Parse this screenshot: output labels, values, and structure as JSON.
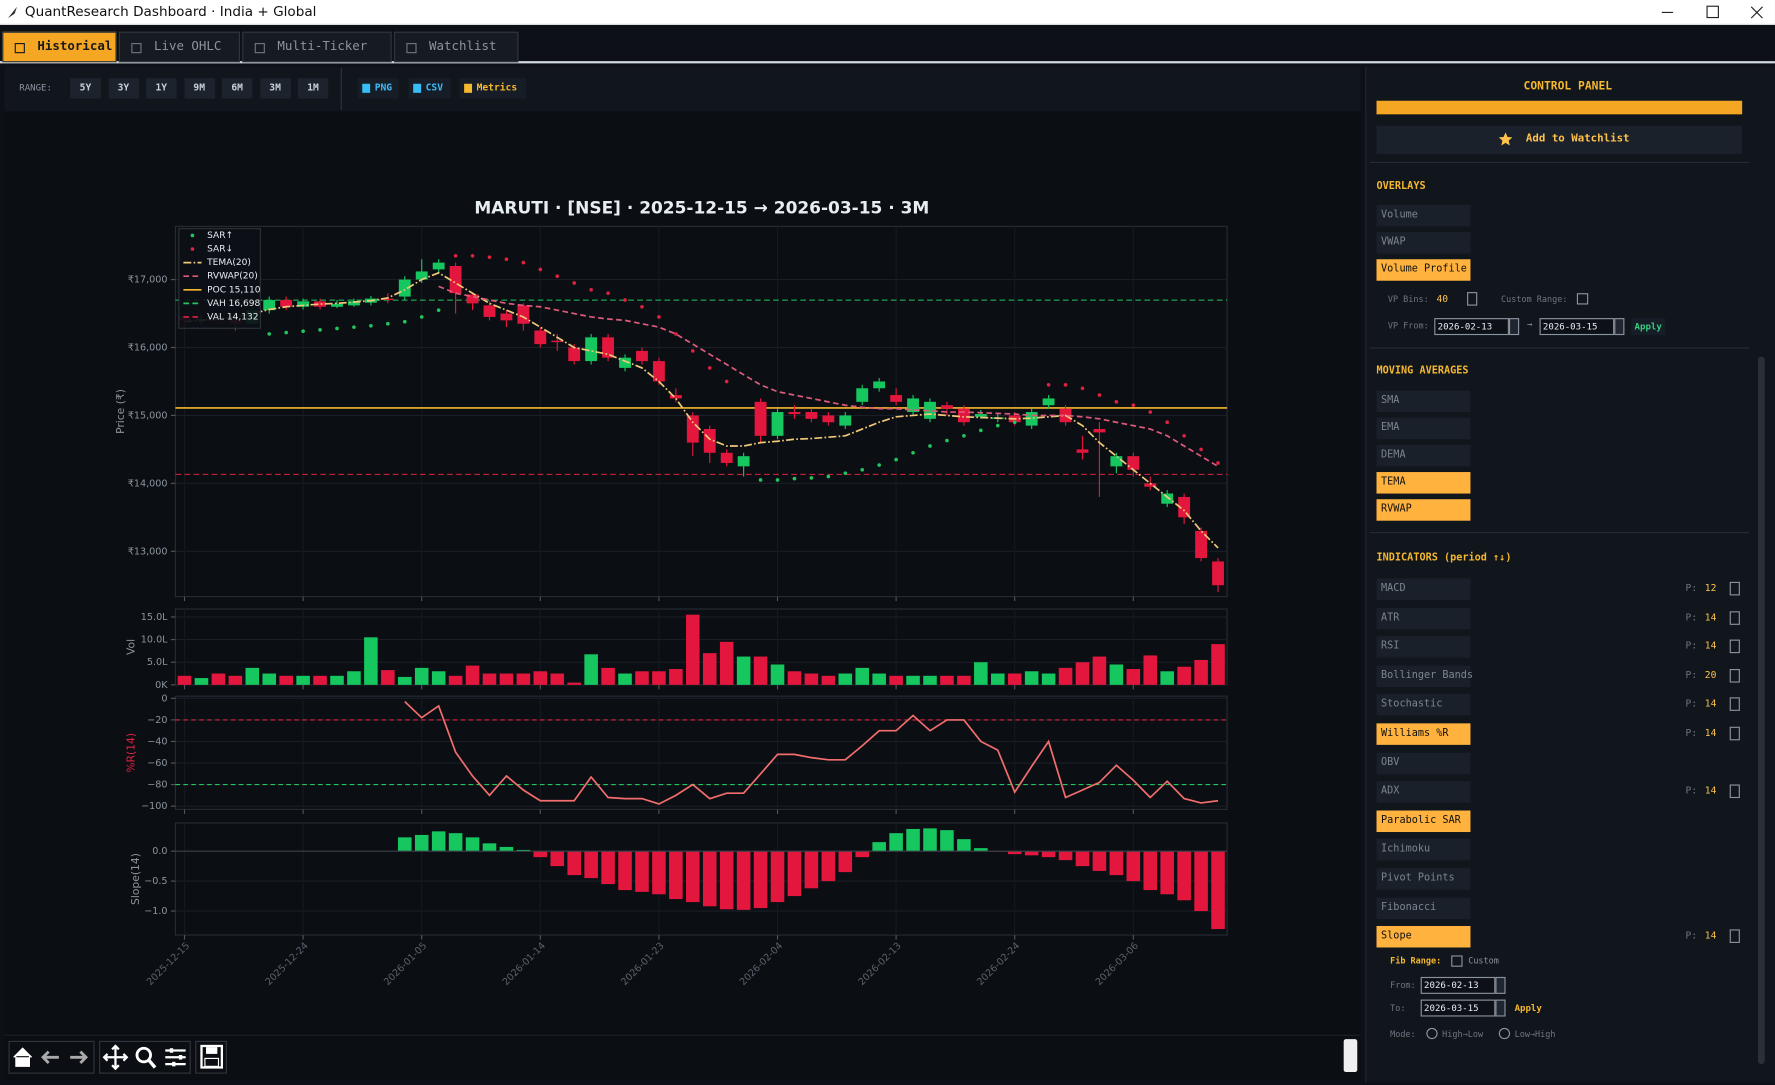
{
  "window": {
    "title": "QuantResearch Dashboard · India + Global"
  },
  "tabs": {
    "items": [
      "Historical",
      "Live OHLC",
      "Multi-Ticker",
      "Watchlist"
    ],
    "active": 0
  },
  "toolbar": {
    "range_label": "RANGE:",
    "ranges": [
      "5Y",
      "3Y",
      "1Y",
      "9M",
      "6M",
      "3M",
      "1M"
    ],
    "exports": [
      "PNG",
      "CSV",
      "Metrics"
    ]
  },
  "chart_data": [
    {
      "type": "candlestick",
      "title": "MARUTI  ·  [NSE]  ·  2025-12-15 → 2026-03-15  ·  3M",
      "y_label": "Price (₹)",
      "ylim": [
        12333,
        17783
      ],
      "yticks": [
        {
          "value": 13000,
          "label": "₹13,000"
        },
        {
          "value": 14000,
          "label": "₹14,000"
        },
        {
          "value": 15000,
          "label": "₹15,000"
        },
        {
          "value": 16000,
          "label": "₹16,000"
        },
        {
          "value": 17000,
          "label": "₹17,000"
        }
      ],
      "grid": true,
      "up_color": "#16c65f",
      "down_color": "#e3173e",
      "open": [
        16450,
        16400,
        16420,
        16400,
        16350,
        16550,
        16700,
        16600,
        16680,
        16600,
        16620,
        16660,
        16720,
        16750,
        17000,
        17150,
        17200,
        16780,
        16620,
        16500,
        16620,
        16250,
        16100,
        16000,
        15800,
        16150,
        15700,
        15950,
        15800,
        15300,
        15000,
        14800,
        14450,
        14250,
        15200,
        14700,
        15050,
        15050,
        15000,
        14850,
        15200,
        15400,
        15300,
        15050,
        14950,
        15150,
        15100,
        14980,
        14950,
        15000,
        14850,
        15150,
        15100,
        14500,
        14800,
        14250,
        14400,
        14000,
        13700,
        13800,
        13300,
        12850
      ],
      "high": [
        16500,
        16480,
        16480,
        16450,
        16600,
        16750,
        16750,
        16720,
        16720,
        16700,
        16720,
        16760,
        16800,
        17050,
        17300,
        17300,
        17250,
        16800,
        16680,
        16550,
        16650,
        16300,
        16200,
        16050,
        16200,
        16200,
        15900,
        16000,
        15850,
        15400,
        15050,
        14850,
        14500,
        14450,
        15250,
        15100,
        15150,
        15100,
        15050,
        15050,
        15450,
        15550,
        15400,
        15300,
        15250,
        15200,
        15150,
        15080,
        15020,
        15050,
        15100,
        15300,
        15150,
        14700,
        14900,
        14450,
        14450,
        14100,
        13900,
        13850,
        13350,
        12900
      ],
      "low": [
        16300,
        16330,
        16350,
        16250,
        16330,
        16500,
        16550,
        16560,
        16560,
        16580,
        16600,
        16620,
        16650,
        16700,
        16950,
        17100,
        16500,
        16550,
        16400,
        16300,
        16250,
        16000,
        15950,
        15750,
        15750,
        15800,
        15650,
        15750,
        15450,
        15200,
        14400,
        14300,
        14250,
        14100,
        14600,
        14650,
        14950,
        14900,
        14850,
        14800,
        15150,
        15350,
        15150,
        15000,
        14900,
        15000,
        14850,
        14950,
        14900,
        14850,
        14800,
        15100,
        14850,
        14350,
        13800,
        14150,
        14100,
        13900,
        13650,
        13400,
        12850,
        12400
      ],
      "close": [
        16400,
        16420,
        16400,
        16350,
        16550,
        16700,
        16600,
        16680,
        16600,
        16640,
        16680,
        16720,
        16700,
        17000,
        17120,
        17250,
        16800,
        16650,
        16450,
        16400,
        16350,
        16050,
        16080,
        15800,
        16150,
        15850,
        15850,
        15800,
        15500,
        15250,
        14600,
        14450,
        14300,
        14400,
        14700,
        15050,
        15020,
        14950,
        14900,
        15000,
        15400,
        15500,
        15200,
        15250,
        15200,
        15100,
        14900,
        15020,
        14970,
        14900,
        15050,
        15250,
        14900,
        14450,
        14750,
        14400,
        14200,
        13950,
        13850,
        13500,
        12900,
        12500
      ],
      "overlays": [
        {
          "name": "SAR↑",
          "type": "scatter",
          "color": "#22c55e",
          "values": [
            null,
            null,
            null,
            null,
            null,
            16200,
            16220,
            16240,
            16260,
            16280,
            16300,
            16320,
            16350,
            16380,
            16450,
            16550,
            null,
            null,
            null,
            null,
            null,
            null,
            null,
            null,
            null,
            null,
            null,
            null,
            null,
            null,
            null,
            null,
            null,
            null,
            14050,
            14050,
            14070,
            14080,
            14100,
            14150,
            14200,
            14270,
            14350,
            14450,
            14550,
            14630,
            14700,
            14780,
            14850,
            14900,
            14950,
            null,
            null,
            null,
            null,
            null,
            null,
            null,
            null,
            null,
            null,
            null
          ]
        },
        {
          "name": "SAR↓",
          "type": "scatter",
          "color": "#e0213f",
          "values": [
            null,
            null,
            null,
            null,
            null,
            null,
            null,
            null,
            null,
            null,
            null,
            null,
            null,
            null,
            null,
            null,
            17350,
            17350,
            17330,
            17300,
            17250,
            17150,
            17050,
            16950,
            16850,
            16800,
            16700,
            16600,
            16450,
            16200,
            15950,
            15700,
            15500,
            null,
            null,
            null,
            null,
            null,
            null,
            null,
            null,
            null,
            null,
            null,
            null,
            null,
            null,
            null,
            null,
            null,
            null,
            15450,
            15450,
            15400,
            15300,
            15200,
            15150,
            15050,
            14900,
            14700,
            14500,
            14300
          ]
        },
        {
          "name": "TEMA(20)",
          "type": "line",
          "style": "dashdot",
          "color": "#f0c878",
          "values": [
            16380,
            16400,
            16420,
            16450,
            16500,
            16560,
            16600,
            16620,
            16640,
            16650,
            16670,
            16690,
            16730,
            16850,
            17000,
            17100,
            16950,
            16800,
            16650,
            16550,
            16450,
            16300,
            16150,
            16000,
            15950,
            15900,
            15800,
            15700,
            15500,
            15250,
            14900,
            14650,
            14550,
            14550,
            14600,
            14620,
            14650,
            14660,
            14680,
            14700,
            14800,
            14900,
            14980,
            15000,
            15020,
            15000,
            14980,
            14970,
            14960,
            14950,
            14960,
            14980,
            15000,
            14850,
            14600,
            14400,
            14200,
            14000,
            13800,
            13600,
            13300,
            13050
          ]
        },
        {
          "name": "RVWAP(20)",
          "type": "line",
          "style": "dashed",
          "color": "#e05a7a",
          "values": [
            null,
            null,
            null,
            null,
            null,
            null,
            null,
            null,
            null,
            null,
            null,
            null,
            null,
            null,
            null,
            16900,
            16800,
            16750,
            16700,
            16650,
            16620,
            16600,
            16550,
            16500,
            16450,
            16420,
            16400,
            16350,
            16300,
            16200,
            16050,
            15900,
            15750,
            15600,
            15450,
            15350,
            15300,
            15250,
            15200,
            15150,
            15120,
            15100,
            15100,
            15080,
            15070,
            15050,
            15050,
            15040,
            15030,
            15020,
            15000,
            15000,
            15000,
            14980,
            14950,
            14900,
            14850,
            14800,
            14700,
            14550,
            14400,
            14250
          ]
        }
      ],
      "reference_lines": [
        {
          "name": "POC 15,110",
          "value": 15110,
          "color": "#f5b82e",
          "style": "solid"
        },
        {
          "name": "VAH 16,698",
          "value": 16698,
          "color": "#22c55e",
          "style": "dashed"
        },
        {
          "name": "VAL 14,132",
          "value": 14132,
          "color": "#e0213f",
          "style": "dashed"
        }
      ]
    },
    {
      "type": "bar",
      "y_label": "Vol",
      "ylim": [
        0,
        1675000
      ],
      "grid": true,
      "up_color": "#16c65f",
      "down_color": "#e3173e",
      "yticks": [
        {
          "value": 0,
          "label": "0K"
        },
        {
          "value": 500000,
          "label": "5.0L"
        },
        {
          "value": 1000000,
          "label": "10.0L"
        },
        {
          "value": 1500000,
          "label": "15.0L"
        }
      ],
      "values": [
        200000,
        150000,
        250000,
        200000,
        375000,
        250000,
        200000,
        200000,
        200000,
        200000,
        300000,
        1050000,
        325000,
        175000,
        375000,
        300000,
        200000,
        425000,
        250000,
        250000,
        250000,
        300000,
        250000,
        50000,
        675000,
        375000,
        250000,
        300000,
        300000,
        350000,
        1550000,
        700000,
        950000,
        625000,
        625000,
        450000,
        300000,
        250000,
        200000,
        250000,
        375000,
        250000,
        200000,
        200000,
        200000,
        200000,
        200000,
        500000,
        250000,
        250000,
        300000,
        250000,
        375000,
        500000,
        625000,
        450000,
        350000,
        650000,
        300000,
        400000,
        550000,
        900000
      ]
    },
    {
      "type": "line",
      "y_label": "%R(14)",
      "label_color": "#e0213f",
      "ylim": [
        -103,
        2
      ],
      "grid": true,
      "color": "#f26d6d",
      "yticks": [
        {
          "value": -100,
          "label": "−100"
        },
        {
          "value": -80,
          "label": "−80"
        },
        {
          "value": -60,
          "label": "−60"
        },
        {
          "value": -40,
          "label": "−40"
        },
        {
          "value": -20,
          "label": "−20"
        },
        0
      ],
      "reference_lines": [
        {
          "value": -20,
          "color": "#e0213f"
        },
        {
          "value": -80,
          "color": "#22c55e"
        }
      ],
      "values": [
        null,
        null,
        null,
        null,
        null,
        null,
        null,
        null,
        null,
        null,
        null,
        null,
        null,
        -3,
        -18,
        -7,
        -50,
        -72,
        -90,
        -72,
        -85,
        -95,
        -95,
        -95,
        -73,
        -92,
        -93,
        -93,
        -98,
        -90,
        -80,
        -93,
        -88,
        -88,
        -70,
        -52,
        -52,
        -55,
        -57,
        -57,
        -44,
        -30,
        -30,
        -16,
        -30,
        -20,
        -20,
        -40,
        -48,
        -87,
        -63,
        -40,
        -92,
        -85,
        -78,
        -62,
        -76,
        -92,
        -77,
        -93,
        -97,
        -95
      ]
    },
    {
      "type": "bar",
      "y_label": "Slope(14)",
      "ylim": [
        -1.4,
        0.47
      ],
      "grid": true,
      "positive_color": "#16c65f",
      "negative_color": "#e3173e",
      "yticks": [
        {
          "value": -1,
          "label": "−1.0"
        },
        {
          "value": -0.5,
          "label": "−0.5"
        },
        {
          "value": 0,
          "label": "0.0"
        }
      ],
      "categories": [
        "2025-12-15",
        null,
        null,
        null,
        null,
        null,
        null,
        "2025-12-24",
        null,
        null,
        null,
        null,
        null,
        null,
        "2026-01-05",
        null,
        null,
        null,
        null,
        null,
        null,
        "2026-01-14",
        null,
        null,
        null,
        null,
        null,
        null,
        "2026-01-23",
        null,
        null,
        null,
        null,
        null,
        null,
        "2026-02-04",
        null,
        null,
        null,
        null,
        null,
        null,
        "2026-02-13",
        null,
        null,
        null,
        null,
        null,
        null,
        "2026-02-24",
        null,
        null,
        null,
        null,
        null,
        null,
        "2026-03-06",
        null,
        null,
        null,
        null,
        null
      ],
      "values": [
        null,
        null,
        null,
        null,
        null,
        null,
        null,
        null,
        null,
        null,
        null,
        null,
        null,
        0.23,
        0.27,
        0.33,
        0.3,
        0.23,
        0.13,
        0.07,
        0.02,
        -0.1,
        -0.25,
        -0.4,
        -0.45,
        -0.55,
        -0.65,
        -0.68,
        -0.72,
        -0.8,
        -0.85,
        -0.92,
        -0.97,
        -0.98,
        -0.95,
        -0.85,
        -0.75,
        -0.62,
        -0.5,
        -0.35,
        -0.1,
        0.15,
        0.3,
        0.37,
        0.38,
        0.35,
        0.2,
        0.05,
        -0.01,
        -0.05,
        -0.07,
        -0.1,
        -0.15,
        -0.25,
        -0.33,
        -0.4,
        -0.5,
        -0.65,
        -0.72,
        -0.82,
        -1.0,
        -1.3
      ]
    }
  ],
  "control_panel": {
    "title": "CONTROL PANEL",
    "watchlist_button": "Add to Watchlist",
    "overlays": {
      "heading": "OVERLAYS",
      "items": [
        {
          "label": "Volume",
          "active": false
        },
        {
          "label": "VWAP",
          "active": false
        },
        {
          "label": "Volume Profile",
          "active": true
        }
      ]
    },
    "volume_profile": {
      "bins_label": "VP Bins:",
      "bins": 40,
      "custom_range_label": "Custom Range:",
      "custom_range": false,
      "from_label": "VP From:",
      "from": "2026-02-13",
      "arrow": "→",
      "to": "2026-03-15",
      "apply": "Apply"
    },
    "moving_averages": {
      "heading": "MOVING AVERAGES",
      "items": [
        {
          "label": "SMA",
          "active": false
        },
        {
          "label": "EMA",
          "active": false
        },
        {
          "label": "DEMA",
          "active": false
        },
        {
          "label": "TEMA",
          "active": true
        },
        {
          "label": "RVWAP",
          "active": true
        }
      ]
    },
    "indicators": {
      "heading": "INDICATORS   (period ↑↓)",
      "period_prefix": "P:",
      "items": [
        {
          "label": "MACD",
          "active": false,
          "period": 12
        },
        {
          "label": "ATR",
          "active": false,
          "period": 14
        },
        {
          "label": "RSI",
          "active": false,
          "period": 14
        },
        {
          "label": "Bollinger Bands",
          "active": false,
          "period": 20
        },
        {
          "label": "Stochastic",
          "active": false,
          "period": 14
        },
        {
          "label": "Williams %R",
          "active": true,
          "period": 14
        },
        {
          "label": "OBV",
          "active": false
        },
        {
          "label": "ADX",
          "active": false,
          "period": 14
        },
        {
          "label": "Parabolic SAR",
          "active": true
        },
        {
          "label": "Ichimoku",
          "active": false
        },
        {
          "label": "Pivot Points",
          "active": false
        },
        {
          "label": "Fibonacci",
          "active": false
        },
        {
          "label": "Slope",
          "active": true,
          "period": 14
        }
      ]
    },
    "fib_range": {
      "label": "Fib Range:",
      "custom_label": "Custom",
      "custom": false,
      "from_label": "From:",
      "from": "2026-02-13",
      "to_label": "To:",
      "to": "2026-03-15",
      "apply": "Apply",
      "mode_label": "Mode:",
      "modes": [
        "High→Low",
        "Low→High"
      ]
    }
  }
}
